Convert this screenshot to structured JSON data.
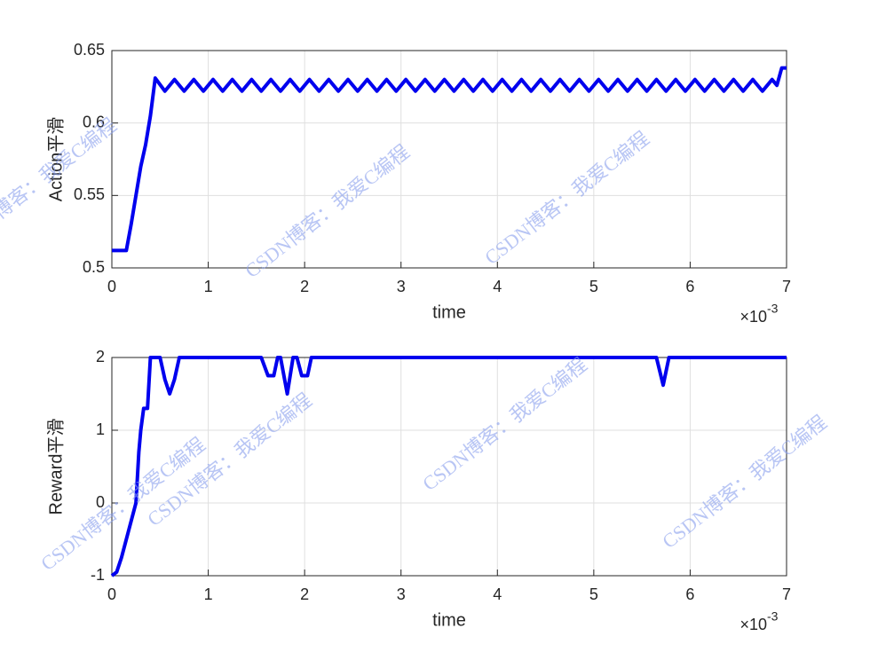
{
  "chart_data": [
    {
      "type": "line",
      "ylabel": "Action平滑",
      "xlabel": "time",
      "x_multiplier": "×10",
      "x_exponent": "-3",
      "xlim": [
        0,
        7
      ],
      "xticks": [
        0,
        1,
        2,
        3,
        4,
        5,
        6,
        7
      ],
      "ylim": [
        0.5,
        0.65
      ],
      "yticks": [
        0.5,
        0.55,
        0.6,
        0.65
      ],
      "grid": true,
      "series": [
        {
          "color": "#0000ee",
          "x": [
            0,
            0.1,
            0.15,
            0.2,
            0.25,
            0.3,
            0.35,
            0.4,
            0.45,
            0.55,
            0.65,
            0.75,
            0.85,
            0.95,
            1.05,
            1.15,
            1.25,
            1.35,
            1.45,
            1.55,
            1.65,
            1.75,
            1.85,
            1.95,
            2.05,
            2.15,
            2.25,
            2.35,
            2.45,
            2.55,
            2.65,
            2.75,
            2.85,
            2.95,
            3.05,
            3.15,
            3.25,
            3.35,
            3.45,
            3.55,
            3.65,
            3.75,
            3.85,
            3.95,
            4.05,
            4.15,
            4.25,
            4.35,
            4.45,
            4.55,
            4.65,
            4.75,
            4.85,
            4.95,
            5.05,
            5.15,
            5.25,
            5.35,
            5.45,
            5.55,
            5.65,
            5.75,
            5.85,
            5.95,
            6.05,
            6.15,
            6.25,
            6.35,
            6.45,
            6.55,
            6.65,
            6.75,
            6.85,
            6.9,
            6.95,
            7
          ],
          "values": [
            0.512,
            0.512,
            0.512,
            0.53,
            0.55,
            0.57,
            0.585,
            0.605,
            0.631,
            0.622,
            0.63,
            0.622,
            0.63,
            0.622,
            0.63,
            0.622,
            0.63,
            0.622,
            0.63,
            0.622,
            0.63,
            0.622,
            0.63,
            0.622,
            0.63,
            0.622,
            0.63,
            0.622,
            0.63,
            0.622,
            0.63,
            0.622,
            0.63,
            0.622,
            0.63,
            0.622,
            0.63,
            0.622,
            0.63,
            0.622,
            0.63,
            0.622,
            0.63,
            0.622,
            0.63,
            0.622,
            0.63,
            0.622,
            0.63,
            0.622,
            0.63,
            0.622,
            0.63,
            0.622,
            0.63,
            0.622,
            0.63,
            0.622,
            0.63,
            0.622,
            0.63,
            0.622,
            0.63,
            0.622,
            0.63,
            0.622,
            0.63,
            0.622,
            0.63,
            0.622,
            0.63,
            0.622,
            0.63,
            0.626,
            0.638,
            0.638
          ]
        }
      ]
    },
    {
      "type": "line",
      "ylabel": "Reward平滑",
      "xlabel": "time",
      "x_multiplier": "×10",
      "x_exponent": "-3",
      "xlim": [
        0,
        7
      ],
      "xticks": [
        0,
        1,
        2,
        3,
        4,
        5,
        6,
        7
      ],
      "ylim": [
        -1,
        2
      ],
      "yticks": [
        -1,
        0,
        1,
        2
      ],
      "grid": true,
      "series": [
        {
          "color": "#0000ee",
          "x": [
            0,
            0.05,
            0.1,
            0.15,
            0.2,
            0.25,
            0.28,
            0.3,
            0.33,
            0.37,
            0.4,
            0.5,
            0.55,
            0.6,
            0.65,
            0.7,
            1.55,
            1.62,
            1.68,
            1.72,
            1.75,
            1.82,
            1.88,
            1.92,
            1.97,
            2.03,
            2.07,
            5.65,
            5.72,
            5.78,
            7
          ],
          "values": [
            -1,
            -0.95,
            -0.75,
            -0.5,
            -0.25,
            0,
            0.7,
            1.0,
            1.3,
            1.3,
            2,
            2,
            1.7,
            1.5,
            1.7,
            2,
            2,
            1.75,
            1.75,
            2,
            2,
            1.5,
            2,
            2,
            1.75,
            1.75,
            2,
            2,
            1.62,
            2,
            2
          ]
        }
      ]
    }
  ],
  "watermark": "CSDN博客：我爱C编程"
}
